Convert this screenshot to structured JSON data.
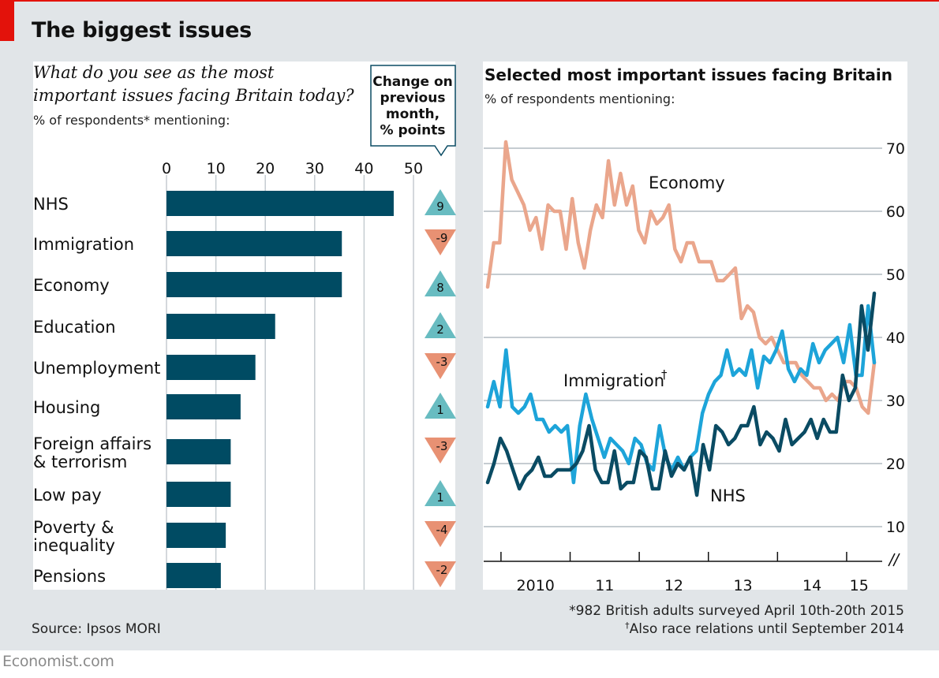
{
  "title": "The biggest issues",
  "source": "Source: Ipsos MORI",
  "footnote1": "*982 British adults surveyed April 10th-20th 2015",
  "footnote2_mark": "†",
  "footnote2": "Also race relations until September 2014",
  "brand": "Economist.com",
  "colors": {
    "background": "#e1e5e8",
    "panel": "#ffffff",
    "bar": "#004b63",
    "economy": "#eaa68c",
    "immigration": "#1da4d9",
    "nhs": "#0a4b63",
    "up": "#68bcc1",
    "down": "#e89173",
    "red": "#e3120b"
  },
  "chart_data": [
    {
      "type": "bar",
      "title_line1": "What do you see as the most",
      "title_line2": "important issues facing Britain today?",
      "subtitle": "% of respondents* mentioning:",
      "xlim": [
        0,
        50
      ],
      "ticks": [
        "0",
        "10",
        "20",
        "30",
        "40",
        "50"
      ],
      "change_header": [
        "Change on",
        "previous",
        "month,",
        "% points"
      ],
      "categories": [
        [
          "NHS"
        ],
        [
          "Immigration"
        ],
        [
          "Economy"
        ],
        [
          "Education"
        ],
        [
          "Unemployment"
        ],
        [
          "Housing"
        ],
        [
          "Foreign affairs",
          "& terrorism"
        ],
        [
          "Low pay"
        ],
        [
          "Poverty &",
          "inequality"
        ],
        [
          "Pensions"
        ]
      ],
      "values": [
        46,
        35.5,
        35.5,
        22,
        18,
        15,
        13,
        13,
        12,
        11
      ],
      "changes": [
        "9",
        "-9",
        "8",
        "2",
        "-3",
        "1",
        "-3",
        "1",
        "-4",
        "-2"
      ]
    },
    {
      "type": "line",
      "title": "Selected most important issues facing Britain",
      "subtitle": "% of respondents mentioning:",
      "ylim": [
        5,
        70
      ],
      "yticks": [
        "70",
        "60",
        "50",
        "40",
        "30",
        "20",
        "10"
      ],
      "xlabels": [
        "2010",
        "11",
        "12",
        "13",
        "14",
        "15"
      ],
      "x_start": 2009.75,
      "x_end": 2015.4,
      "series": [
        {
          "name": "Economy",
          "label": "Economy",
          "values": [
            48,
            55,
            55,
            71,
            65,
            63,
            61,
            57,
            59,
            54,
            61,
            60,
            60,
            54,
            62,
            55,
            51,
            57,
            61,
            59,
            68,
            61,
            66,
            61,
            64,
            57,
            55,
            60,
            58,
            59,
            61,
            54,
            52,
            55,
            55,
            52,
            52,
            52,
            49,
            49,
            50,
            51,
            43,
            45,
            44,
            40,
            39,
            40,
            38,
            36,
            36,
            36,
            34,
            33,
            32,
            32,
            30,
            31,
            30,
            33,
            33,
            32,
            29,
            28,
            36
          ]
        },
        {
          "name": "Immigration",
          "label": "Immigration",
          "marker": "†",
          "values": [
            29,
            33,
            29,
            38,
            29,
            28,
            29,
            31,
            27,
            27,
            25,
            26,
            25,
            26,
            17,
            26,
            31,
            27,
            24,
            21,
            24,
            23,
            22,
            20,
            24,
            23,
            20,
            19,
            26,
            21,
            19,
            21,
            19,
            21,
            22,
            28,
            31,
            33,
            34,
            38,
            34,
            35,
            34,
            38,
            32,
            37,
            36,
            38,
            41,
            35,
            33,
            35,
            34,
            39,
            36,
            38,
            39,
            40,
            36,
            42,
            34,
            34,
            45,
            36
          ]
        },
        {
          "name": "NHS",
          "label": "NHS",
          "values": [
            17,
            20,
            24,
            22,
            19,
            16,
            18,
            19,
            21,
            18,
            18,
            19,
            19,
            19,
            20,
            22,
            26,
            19,
            17,
            17,
            22,
            16,
            17,
            17,
            22,
            21,
            16,
            16,
            22,
            18,
            20,
            19,
            21,
            15,
            23,
            19,
            26,
            25,
            23,
            24,
            26,
            26,
            29,
            23,
            25,
            24,
            22,
            27,
            23,
            24,
            25,
            27,
            24,
            27,
            25,
            25,
            34,
            30,
            32,
            45,
            38,
            47
          ]
        }
      ]
    }
  ]
}
